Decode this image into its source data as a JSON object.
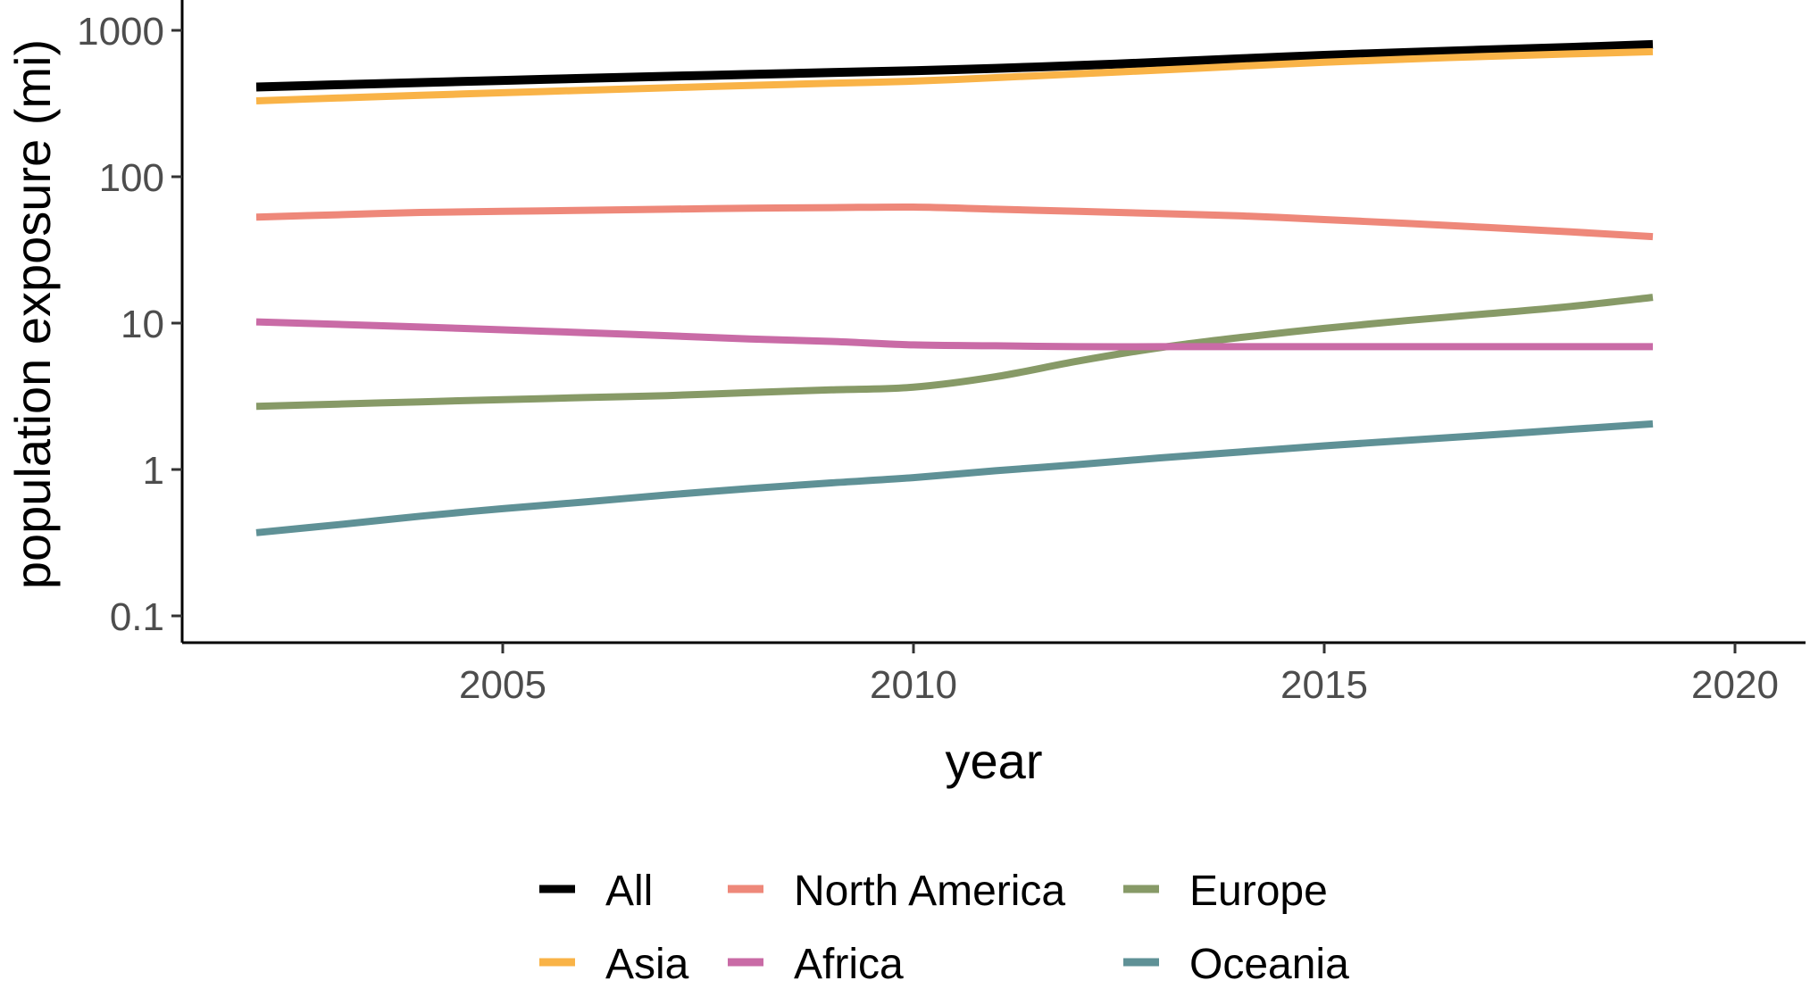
{
  "chart_data": {
    "type": "line",
    "xlabel": "year",
    "ylabel": "population exposure (mi)",
    "x_scale": "linear",
    "y_scale": "log10",
    "xlim": [
      2001.8,
      2020.8
    ],
    "ylim": [
      0.1,
      1000
    ],
    "x_ticks": [
      2005,
      2010,
      2015,
      2020
    ],
    "x_tick_labels": [
      "2005",
      "2010",
      "2015",
      "2020"
    ],
    "y_ticks": [
      0.1,
      1,
      10,
      100,
      1000
    ],
    "y_tick_labels": [
      "0.1",
      "1",
      "10",
      "100",
      "1000"
    ],
    "grid": false,
    "legend_position": "bottom",
    "x": [
      2002,
      2003,
      2004,
      2005,
      2006,
      2007,
      2008,
      2009,
      2010,
      2011,
      2012,
      2013,
      2014,
      2015,
      2016,
      2017,
      2018,
      2019
    ],
    "series": [
      {
        "name": "All",
        "color": "#000000",
        "values": [
          410,
          425,
          440,
          455,
          470,
          485,
          500,
          515,
          530,
          550,
          575,
          605,
          640,
          675,
          705,
          735,
          765,
          800
        ]
      },
      {
        "name": "Asia",
        "color": "#F9B347",
        "values": [
          330,
          345,
          360,
          375,
          390,
          405,
          420,
          435,
          450,
          475,
          505,
          535,
          570,
          605,
          635,
          665,
          690,
          715
        ]
      },
      {
        "name": "North America",
        "color": "#EE887A",
        "values": [
          53,
          55,
          57,
          58,
          59,
          60,
          61,
          61.5,
          62,
          60,
          58,
          56,
          54,
          51,
          48,
          45,
          42,
          39
        ]
      },
      {
        "name": "Africa",
        "color": "#C96BA6",
        "values": [
          10.2,
          9.8,
          9.4,
          9.0,
          8.6,
          8.2,
          7.8,
          7.5,
          7.1,
          7.0,
          6.9,
          6.9,
          6.9,
          6.9,
          6.9,
          6.9,
          6.9,
          6.9
        ]
      },
      {
        "name": "Europe",
        "color": "#879A67",
        "values": [
          2.7,
          2.8,
          2.9,
          3.0,
          3.1,
          3.2,
          3.35,
          3.5,
          3.65,
          4.3,
          5.5,
          6.8,
          8.0,
          9.2,
          10.4,
          11.6,
          13.0,
          15.0
        ]
      },
      {
        "name": "Oceania",
        "color": "#5F9196",
        "values": [
          0.37,
          0.42,
          0.48,
          0.54,
          0.6,
          0.67,
          0.74,
          0.81,
          0.88,
          0.98,
          1.08,
          1.2,
          1.32,
          1.45,
          1.58,
          1.72,
          1.88,
          2.05
        ]
      }
    ],
    "legend": {
      "rows": 2,
      "order": [
        "All",
        "Asia",
        "North America",
        "Africa",
        "Europe",
        "Oceania"
      ]
    }
  }
}
